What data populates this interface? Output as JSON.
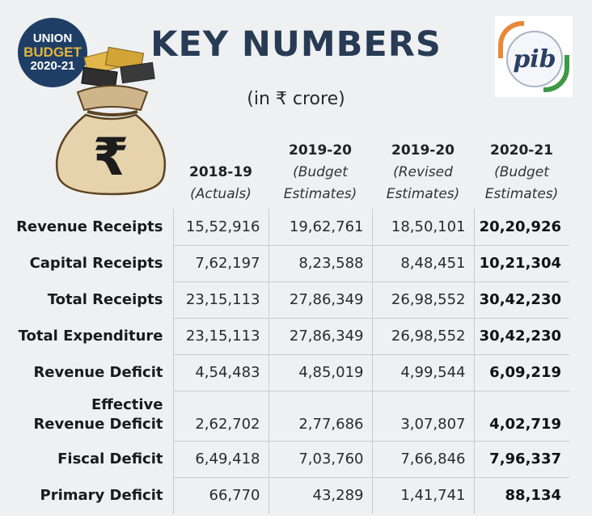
{
  "badge": {
    "line1": "UNION",
    "line2": "BUDGET",
    "line3": "2020-21"
  },
  "bag": {
    "symbol": "₹"
  },
  "title": "KEY NUMBERS",
  "subtitle": "(in ₹ crore)",
  "logo": {
    "text": "pib"
  },
  "columns": [
    {
      "year": "2018-19",
      "sub": "(Actuals)"
    },
    {
      "year": "2019-20",
      "sub1": "(Budget",
      "sub2": "Estimates)"
    },
    {
      "year": "2019-20",
      "sub1": "(Revised",
      "sub2": "Estimates)"
    },
    {
      "year": "2020-21",
      "sub1": "(Budget",
      "sub2": "Estimates)"
    }
  ],
  "rows": [
    {
      "label": "Revenue Receipts",
      "values": [
        "15,52,916",
        "19,62,761",
        "18,50,101",
        "20,20,926"
      ]
    },
    {
      "label": "Capital Receipts",
      "values": [
        "7,62,197",
        "8,23,588",
        "8,48,451",
        "10,21,304"
      ]
    },
    {
      "label": "Total Receipts",
      "values": [
        "23,15,113",
        "27,86,349",
        "26,98,552",
        "30,42,230"
      ]
    },
    {
      "label": "Total Expenditure",
      "values": [
        "23,15,113",
        "27,86,349",
        "26,98,552",
        "30,42,230"
      ]
    },
    {
      "label": "Revenue Deficit",
      "values": [
        "4,54,483",
        "4,85,019",
        "4,99,544",
        "6,09,219"
      ]
    },
    {
      "label1": "Effective",
      "label2": "Revenue Deficit",
      "values": [
        "2,62,702",
        "2,77,686",
        "3,07,807",
        "4,02,719"
      ]
    },
    {
      "label": "Fiscal Deficit",
      "values": [
        "6,49,418",
        "7,03,760",
        "7,66,846",
        "7,96,337"
      ]
    },
    {
      "label": "Primary Deficit",
      "values": [
        "66,770",
        "43,289",
        "1,41,741",
        "88,134"
      ]
    }
  ]
}
